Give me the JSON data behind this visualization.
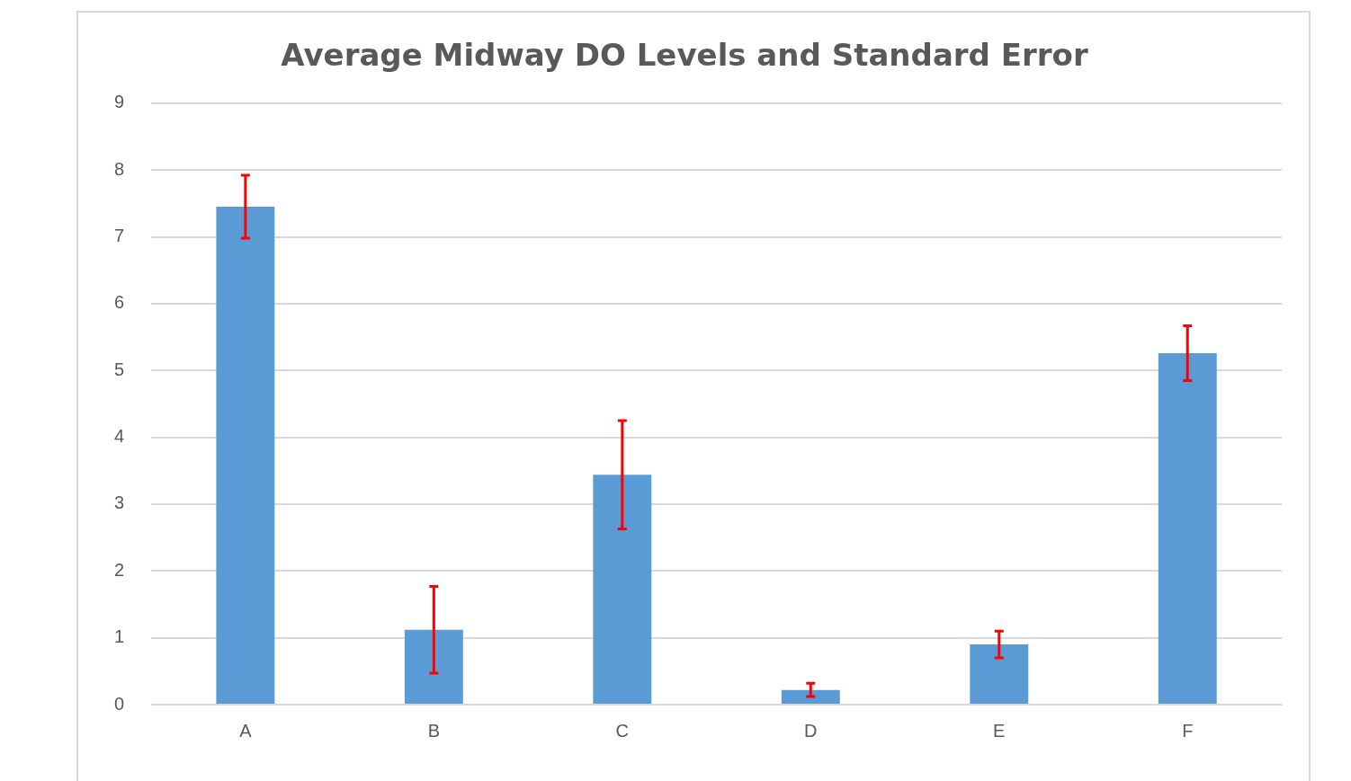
{
  "chart_data": {
    "type": "bar",
    "title": "Average Midway DO Levels and Standard Error",
    "categories": [
      "A",
      "B",
      "C",
      "D",
      "E",
      "F"
    ],
    "values": [
      7.45,
      1.12,
      3.44,
      0.22,
      0.9,
      5.26
    ],
    "errors": [
      0.47,
      0.65,
      0.81,
      0.1,
      0.2,
      0.41
    ],
    "color": "#5b9bd5",
    "ylim": [
      0,
      9
    ],
    "yticks": [
      0,
      1,
      2,
      3,
      4,
      5,
      6,
      7,
      8,
      9
    ],
    "grid": "y",
    "legend": false
  }
}
